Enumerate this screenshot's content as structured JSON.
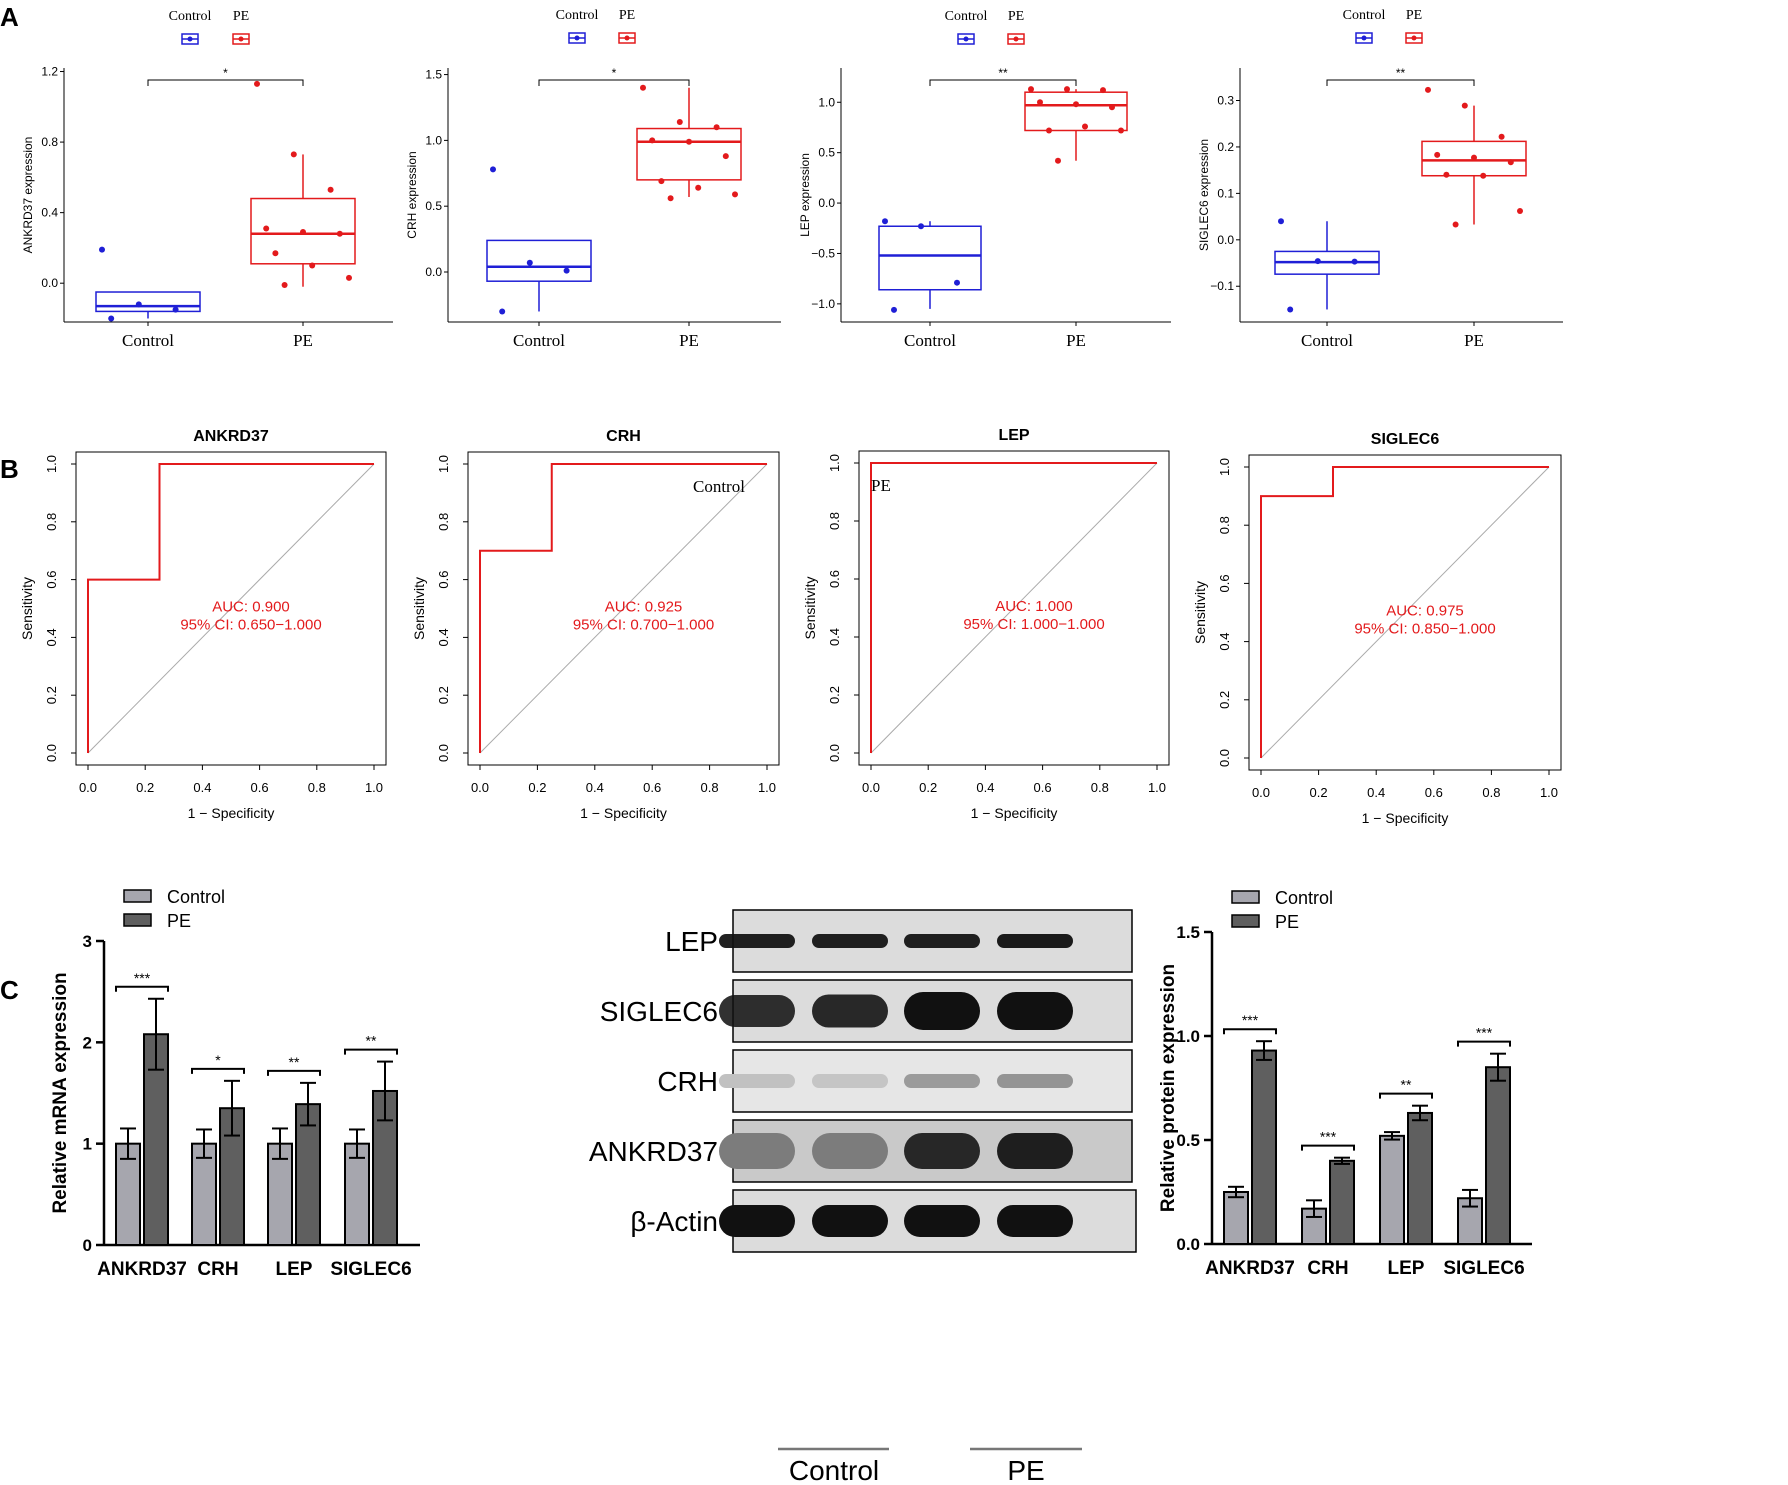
{
  "panel_labels": [
    "A",
    "B",
    "C"
  ],
  "colors": {
    "control": "#1f1fd6",
    "pe": "#e31a1c",
    "roc": "#e31a1c",
    "bar_control": "#a6a6ae",
    "bar_pe": "#5f5f5f"
  },
  "chart_data": [
    {
      "type": "box",
      "id": "box_ankrd37",
      "ylabel": "ANKRD37 expression",
      "categories": [
        "Control",
        "PE"
      ],
      "ylim": [
        -0.22,
        1.22
      ],
      "yticks": [
        0.0,
        0.4,
        0.8,
        1.2
      ],
      "ytick_labels": [
        "0.0",
        "0.4",
        "0.8",
        "1.2"
      ],
      "legend": [
        "Control",
        "PE"
      ],
      "significance": "*",
      "boxes": [
        {
          "q1": -0.16,
          "median": -0.13,
          "q3": -0.05,
          "whisker_low": -0.2,
          "whisker_high": -0.05,
          "points": [
            0.19,
            -0.12,
            -0.15,
            -0.2
          ]
        },
        {
          "q1": 0.11,
          "median": 0.28,
          "q3": 0.48,
          "whisker_low": -0.02,
          "whisker_high": 0.73,
          "points": [
            1.13,
            0.73,
            0.53,
            0.31,
            0.29,
            0.28,
            0.17,
            0.1,
            0.03,
            -0.01
          ]
        }
      ]
    },
    {
      "type": "box",
      "id": "box_crh",
      "ylabel": "CRH expression",
      "categories": [
        "Control",
        "PE"
      ],
      "ylim": [
        -0.38,
        1.55
      ],
      "yticks": [
        0.0,
        0.5,
        1.0,
        1.5
      ],
      "ytick_labels": [
        "0.0",
        "0.5",
        "1.0",
        "1.5"
      ],
      "legend": [
        "Control",
        "PE"
      ],
      "significance": "*",
      "boxes": [
        {
          "q1": -0.07,
          "median": 0.04,
          "q3": 0.24,
          "whisker_low": -0.3,
          "whisker_high": 0.24,
          "points": [
            0.78,
            0.07,
            0.01,
            -0.3
          ]
        },
        {
          "q1": 0.7,
          "median": 0.99,
          "q3": 1.09,
          "whisker_low": 0.57,
          "whisker_high": 1.4,
          "points": [
            1.4,
            1.14,
            1.1,
            1.0,
            0.99,
            0.88,
            0.69,
            0.64,
            0.59,
            0.56
          ]
        }
      ]
    },
    {
      "type": "box",
      "id": "box_lep",
      "ylabel": "LEP expression",
      "categories": [
        "Control",
        "PE"
      ],
      "ylim": [
        -1.18,
        1.34
      ],
      "yticks": [
        -1.0,
        -0.5,
        0.0,
        0.5,
        1.0
      ],
      "ytick_labels": [
        "−1.0",
        "−0.5",
        "0.0",
        "0.5",
        "1.0"
      ],
      "legend": [
        "Control",
        "PE"
      ],
      "significance": "**",
      "boxes": [
        {
          "q1": -0.86,
          "median": -0.52,
          "q3": -0.23,
          "whisker_low": -1.05,
          "whisker_high": -0.18,
          "points": [
            -0.18,
            -0.23,
            -0.79,
            -1.06
          ]
        },
        {
          "q1": 0.72,
          "median": 0.97,
          "q3": 1.1,
          "whisker_low": 0.42,
          "whisker_high": 1.13,
          "points": [
            1.13,
            1.13,
            1.12,
            1.0,
            0.98,
            0.95,
            0.72,
            0.76,
            0.72,
            0.42
          ]
        }
      ]
    },
    {
      "type": "box",
      "id": "box_siglec6",
      "ylabel": "SIGLEC6 expression",
      "categories": [
        "Control",
        "PE"
      ],
      "ylim": [
        -0.177,
        0.37
      ],
      "yticks": [
        -0.1,
        0.0,
        0.1,
        0.2,
        0.3
      ],
      "ytick_labels": [
        "−0.1",
        "0.0",
        "0.1",
        "0.2",
        "0.3"
      ],
      "legend": [
        "Control",
        "PE"
      ],
      "significance": "**",
      "boxes": [
        {
          "q1": -0.074,
          "median": -0.048,
          "q3": -0.025,
          "whisker_low": -0.15,
          "whisker_high": 0.04,
          "points": [
            0.04,
            -0.046,
            -0.047,
            -0.15
          ]
        },
        {
          "q1": 0.138,
          "median": 0.171,
          "q3": 0.212,
          "whisker_low": 0.033,
          "whisker_high": 0.289,
          "points": [
            0.323,
            0.289,
            0.222,
            0.183,
            0.177,
            0.167,
            0.14,
            0.138,
            0.062,
            0.033
          ]
        }
      ]
    },
    {
      "type": "line",
      "id": "roc_ankrd37",
      "title": "ANKRD37",
      "xlabel": "1 − Specificity",
      "ylabel": "Sensitivity",
      "x": [
        0,
        0,
        0.25,
        0.25,
        1
      ],
      "y": [
        0,
        0.6,
        0.6,
        1.0,
        1.0
      ],
      "xlim": [
        0,
        1
      ],
      "ylim": [
        0,
        1
      ],
      "ticks": [
        "0.0",
        "0.2",
        "0.4",
        "0.6",
        "0.8",
        "1.0"
      ],
      "auc_text": "AUC: 0.900",
      "ci_text": "95% CI: 0.650−1.000"
    },
    {
      "type": "line",
      "id": "roc_crh",
      "title": "CRH",
      "xlabel": "1 − Specificity",
      "ylabel": "Sensitivity",
      "x": [
        0,
        0,
        0.25,
        0.25,
        1
      ],
      "y": [
        0,
        0.7,
        0.7,
        1.0,
        1.0
      ],
      "xlim": [
        0,
        1
      ],
      "ylim": [
        0,
        1
      ],
      "ticks": [
        "0.0",
        "0.2",
        "0.4",
        "0.6",
        "0.8",
        "1.0"
      ],
      "auc_text": "AUC: 0.925",
      "ci_text": "95% CI: 0.700−1.000",
      "annotation": "Control"
    },
    {
      "type": "line",
      "id": "roc_lep",
      "title": "LEP",
      "xlabel": "1 − Specificity",
      "ylabel": "Sensitivity",
      "x": [
        0,
        0,
        1
      ],
      "y": [
        0,
        1.0,
        1.0
      ],
      "xlim": [
        0,
        1
      ],
      "ylim": [
        0,
        1
      ],
      "ticks": [
        "0.0",
        "0.2",
        "0.4",
        "0.6",
        "0.8",
        "1.0"
      ],
      "auc_text": "AUC: 1.000",
      "ci_text": "95% CI: 1.000−1.000",
      "annotation": "PE"
    },
    {
      "type": "line",
      "id": "roc_siglec6",
      "title": "SIGLEC6",
      "xlabel": "1 − Specificity",
      "ylabel": "Sensitivity",
      "x": [
        0,
        0,
        0.25,
        0.25,
        1
      ],
      "y": [
        0,
        0.9,
        0.9,
        1.0,
        1.0
      ],
      "xlim": [
        0,
        1
      ],
      "ylim": [
        0,
        1
      ],
      "ticks": [
        "0.0",
        "0.2",
        "0.4",
        "0.6",
        "0.8",
        "1.0"
      ],
      "auc_text": "AUC: 0.975",
      "ci_text": "95% CI: 0.850−1.000"
    },
    {
      "type": "bar",
      "id": "bar_mrna",
      "ylabel": "Relative mRNA expression",
      "categories": [
        "ANKRD37",
        "CRH",
        "LEP",
        "SIGLEC6"
      ],
      "ylim": [
        0,
        3
      ],
      "yticks": [
        "0",
        "1",
        "2",
        "3"
      ],
      "series": [
        {
          "name": "Control",
          "values": [
            1.0,
            1.0,
            1.0,
            1.0
          ],
          "errors": [
            0.15,
            0.14,
            0.15,
            0.14
          ]
        },
        {
          "name": "PE",
          "values": [
            2.08,
            1.35,
            1.39,
            1.52
          ],
          "errors": [
            0.35,
            0.27,
            0.21,
            0.29
          ]
        }
      ],
      "significance": [
        "***",
        "*",
        "**",
        "**"
      ]
    },
    {
      "type": "table",
      "id": "western_blot",
      "rows": [
        "LEP",
        "SIGLEC6",
        "CRH",
        "ANKRD37",
        "β-Actin"
      ],
      "groups": [
        "Control",
        "PE"
      ]
    },
    {
      "type": "bar",
      "id": "bar_protein",
      "ylabel": "Relative protein expression",
      "categories": [
        "ANKRD37",
        "CRH",
        "LEP",
        "SIGLEC6"
      ],
      "ylim": [
        0,
        1.5
      ],
      "yticks": [
        "0.0",
        "0.5",
        "1.0",
        "1.5"
      ],
      "series": [
        {
          "name": "Control",
          "values": [
            0.25,
            0.17,
            0.52,
            0.22
          ],
          "errors": [
            0.025,
            0.04,
            0.018,
            0.04
          ]
        },
        {
          "name": "PE",
          "values": [
            0.93,
            0.4,
            0.63,
            0.85
          ],
          "errors": [
            0.045,
            0.015,
            0.035,
            0.065
          ]
        }
      ],
      "significance": [
        "***",
        "***",
        "**",
        "***"
      ]
    }
  ]
}
